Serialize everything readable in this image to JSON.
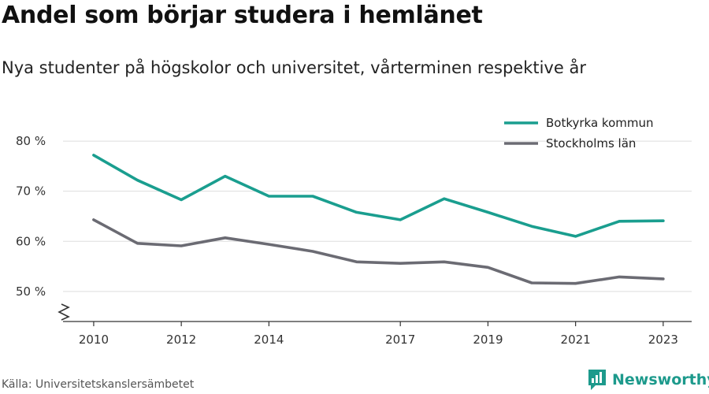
{
  "header": {
    "title": "Andel som börjar studera i hemlänet",
    "subtitle": "Nya studenter på högskolor och universitet, vårterminen respektive år"
  },
  "chart_data": {
    "type": "line",
    "title": "Andel som börjar studera i hemlänet",
    "subtitle": "Nya studenter på högskolor och universitet, vårterminen respektive år",
    "xlabel": "",
    "ylabel": "",
    "x": [
      2010,
      2011,
      2012,
      2013,
      2014,
      2015,
      2016,
      2017,
      2018,
      2019,
      2020,
      2021,
      2022,
      2023
    ],
    "x_tick_labels": [
      "2010",
      "2012",
      "2014",
      "2017",
      "2019",
      "2021",
      "2023"
    ],
    "y_ticks": [
      50,
      60,
      70,
      80
    ],
    "y_tick_labels": [
      "50 %",
      "60 %",
      "70 %",
      "80 %"
    ],
    "ylim": [
      44,
      83
    ],
    "xlim": [
      2009.3,
      2023.65
    ],
    "y_axis_break": true,
    "grid": true,
    "legend_position": "top-right",
    "series": [
      {
        "name": "Botkyrka kommun",
        "color": "#1a9e8f",
        "values": [
          77.2,
          72.2,
          68.3,
          73.0,
          69.0,
          69.0,
          65.8,
          64.3,
          68.5,
          65.8,
          63.0,
          61.0,
          64.0,
          64.1
        ]
      },
      {
        "name": "Stockholms län",
        "color": "#6b6b73",
        "values": [
          64.3,
          59.6,
          59.1,
          60.7,
          59.4,
          58.0,
          55.9,
          55.6,
          55.9,
          54.8,
          51.7,
          51.6,
          52.9,
          52.5
        ]
      }
    ]
  },
  "footer": {
    "source": "Källa: Universitetskanslersämbetet",
    "brand": "Newsworthy",
    "brand_color": "#1d9a8c",
    "brand_icon": "bar-chart-logo-icon"
  }
}
